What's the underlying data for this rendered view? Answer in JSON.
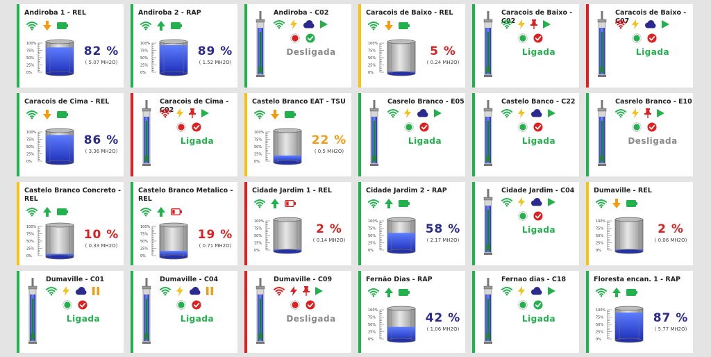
{
  "colors": {
    "green": "#22b14c",
    "yellow": "#f5c218",
    "red": "#e02020",
    "blue": "#2a2a8f",
    "orange": "#f39c12",
    "gray": "#8a8a8a"
  },
  "tank_scale": [
    "100%",
    "75%",
    "50%",
    "25%",
    "0%"
  ],
  "cards": [
    {
      "title": "Andiroba 1 - REL",
      "kind": "tank",
      "border": "green",
      "icons": [
        "wifi-green",
        "arrow-down-orange",
        "battery-full-green"
      ],
      "level": 0.82,
      "pct": "82 %",
      "pct_color": "blue",
      "sub": "( 5.07 MH2O)"
    },
    {
      "title": "Andiroba 2 - RAP",
      "kind": "tank",
      "border": "green",
      "icons": [
        "wifi-green",
        "arrow-up-green",
        "battery-full-green"
      ],
      "level": 0.89,
      "pct": "89 %",
      "pct_color": "blue",
      "sub": "( 1.52 MH2O)"
    },
    {
      "title": "Andiroba - C02",
      "kind": "well",
      "border": "green",
      "icons": [
        "wifi-green",
        "bolt-yellow",
        "cloud-blue",
        "play-green"
      ],
      "states": [
        "dot-red",
        "check-green"
      ],
      "status": "Desligada",
      "status_on": false
    },
    {
      "title": "Caracois de Baixo - REL",
      "kind": "tank",
      "border": "yellow",
      "icons": [
        "wifi-green",
        "arrow-down-orange",
        "battery-full-green"
      ],
      "level": 0.05,
      "pct": "5 %",
      "pct_color": "red",
      "sub": "( 0.24 MH2O)"
    },
    {
      "title": "Caracois de Baixo - C02",
      "kind": "well",
      "border": "green",
      "icons": [
        "wifi-green",
        "bolt-yellow",
        "pin-red",
        "play-green"
      ],
      "states": [
        "dot-green",
        "check-red"
      ],
      "status": "Ligada",
      "status_on": true
    },
    {
      "title": "Caracois de Baixo - C07",
      "kind": "well",
      "border": "red",
      "icons": [
        "wifi-red",
        "bolt-yellow",
        "cloud-blue",
        "play-green"
      ],
      "states": [
        "dot-green",
        "check-red"
      ],
      "status": "Ligada",
      "status_on": true
    },
    {
      "title": "Caracois de Cima - REL",
      "kind": "tank",
      "border": "green",
      "icons": [
        "wifi-green",
        "arrow-down-orange",
        "battery-full-green"
      ],
      "level": 0.86,
      "pct": "86 %",
      "pct_color": "blue",
      "sub": "( 3.36 MH2O)"
    },
    {
      "title": "Caracois de Cima - C02",
      "kind": "well",
      "border": "red",
      "icons": [
        "wifi-red",
        "bolt-yellow",
        "pin-red",
        "play-green"
      ],
      "states": [
        "dot-red",
        "check-red"
      ],
      "status": "Ligada",
      "status_on": true
    },
    {
      "title": "Castelo Branco EAT - TSU",
      "kind": "tank",
      "border": "yellow",
      "icons": [
        "wifi-green",
        "arrow-down-orange",
        "battery-full-green"
      ],
      "level": 0.22,
      "pct": "22 %",
      "pct_color": "orange",
      "sub": "( 0.5 MH2O)"
    },
    {
      "title": "Casrelo Branco - E05",
      "kind": "well",
      "border": "green",
      "icons": [
        "wifi-green",
        "bolt-yellow",
        "cloud-blue",
        "play-green"
      ],
      "states": [
        "dot-green",
        "check-red"
      ],
      "status": "Ligada",
      "status_on": true
    },
    {
      "title": "Castelo Banco - C22",
      "kind": "well",
      "border": "green",
      "icons": [
        "wifi-green",
        "bolt-yellow",
        "cloud-blue",
        "play-green"
      ],
      "states": [
        "dot-green",
        "check-red"
      ],
      "status": "Ligada",
      "status_on": true
    },
    {
      "title": "Casrelo Branco - E10",
      "kind": "well",
      "border": "green",
      "icons": [
        "wifi-green",
        "bolt-yellow",
        "pin-red",
        "play-green"
      ],
      "states": [
        "dot-green",
        "check-red"
      ],
      "status": "Desligada",
      "status_on": false
    },
    {
      "title": "Castelo Branco Concreto - REL",
      "kind": "tank",
      "border": "yellow",
      "icons": [
        "wifi-green",
        "arrow-up-green",
        "battery-full-green"
      ],
      "level": 0.1,
      "pct": "10 %",
      "pct_color": "red",
      "sub": "( 0.33 MH2O)"
    },
    {
      "title": "Castelo Branco Metalico - REL",
      "kind": "tank",
      "border": "green",
      "icons": [
        "wifi-green",
        "arrow-up-green",
        "battery-low-red"
      ],
      "level": 0.19,
      "pct": "19 %",
      "pct_color": "red",
      "sub": "( 0.71 MH2O)"
    },
    {
      "title": "Cidade Jardim 1 - REL",
      "kind": "tank",
      "border": "red",
      "icons": [
        "wifi-green",
        "arrow-up-green",
        "battery-low-red"
      ],
      "level": 0.02,
      "pct": "2 %",
      "pct_color": "red",
      "sub": "( 0.14 MH2O)"
    },
    {
      "title": "Cidade Jardim 2 - RAP",
      "kind": "tank",
      "border": "green",
      "icons": [
        "wifi-green",
        "arrow-up-green",
        "battery-full-green"
      ],
      "level": 0.58,
      "pct": "58 %",
      "pct_color": "blue",
      "sub": "( 2.17 MH2O)"
    },
    {
      "title": "Cidade Jardim - C04",
      "kind": "well",
      "border": "green",
      "icons": [
        "wifi-green",
        "bolt-yellow",
        "cloud-blue",
        "play-green"
      ],
      "states": [
        "dot-green",
        "check-red"
      ],
      "status": "Ligada",
      "status_on": true
    },
    {
      "title": "Dumaville - REL",
      "kind": "tank",
      "border": "yellow",
      "icons": [
        "wifi-green",
        "arrow-down-orange",
        "battery-full-green"
      ],
      "level": 0.02,
      "pct": "2 %",
      "pct_color": "red",
      "sub": "( 0.06 MH2O)"
    },
    {
      "title": "Dumaville - C01",
      "kind": "well",
      "border": "green",
      "icons": [
        "wifi-green",
        "bolt-yellow",
        "cloud-blue",
        "pause-orange"
      ],
      "states": [
        "dot-green",
        "check-red"
      ],
      "status": "Ligada",
      "status_on": true
    },
    {
      "title": "Dumaville - C04",
      "kind": "well",
      "border": "green",
      "icons": [
        "wifi-green",
        "bolt-yellow",
        "cloud-blue",
        "pause-orange"
      ],
      "states": [
        "dot-green",
        "check-red"
      ],
      "status": "Ligada",
      "status_on": true
    },
    {
      "title": "Dumaville - C09",
      "kind": "well",
      "border": "red",
      "icons": [
        "wifi-red",
        "bolt-red",
        "pin-red",
        "play-green"
      ],
      "states": [
        "dot-red",
        "check-red"
      ],
      "status": "Desligada",
      "status_on": false
    },
    {
      "title": "Fernão Dias - RAP",
      "kind": "tank",
      "border": "green",
      "icons": [
        "wifi-green",
        "arrow-up-green",
        "battery-full-green"
      ],
      "level": 0.42,
      "pct": "42 %",
      "pct_color": "blue",
      "sub": "( 1.06 MH2O)"
    },
    {
      "title": "Fernao dias - C18",
      "kind": "well",
      "border": "green",
      "icons": [
        "wifi-green",
        "bolt-yellow",
        "cloud-blue",
        "play-green"
      ],
      "states": [
        "dot-green",
        "check-green"
      ],
      "status": "Ligada",
      "status_on": true
    },
    {
      "title": "Floresta encan. 1 - RAP",
      "kind": "tank",
      "border": "green",
      "icons": [
        "wifi-green",
        "arrow-up-green",
        "battery-full-green"
      ],
      "level": 0.87,
      "pct": "87 %",
      "pct_color": "blue",
      "sub": "( 5.77 MH2O)"
    }
  ]
}
